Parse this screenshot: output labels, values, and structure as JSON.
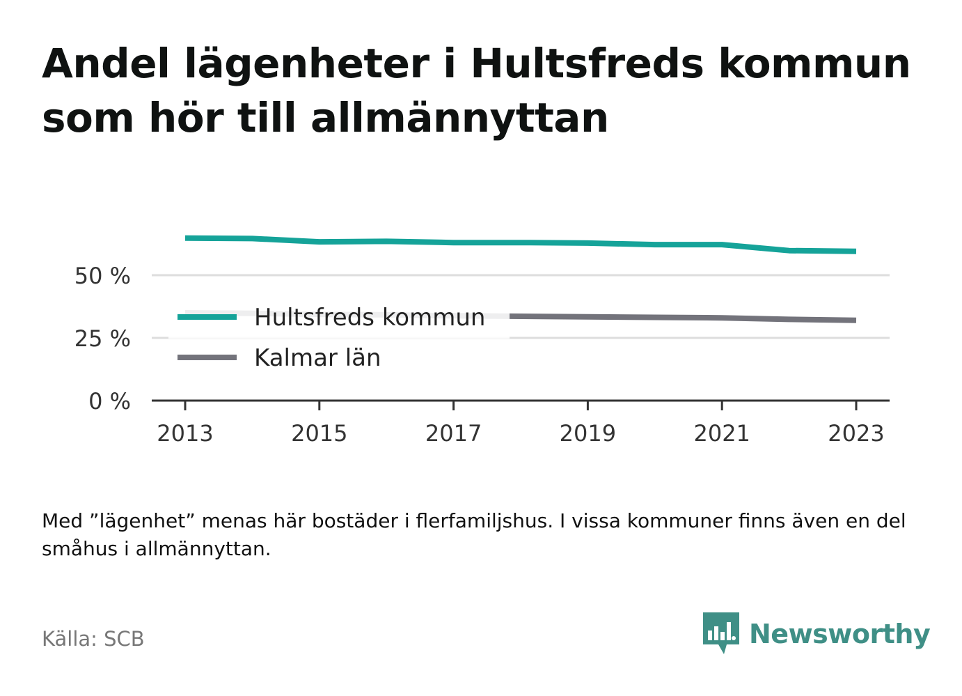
{
  "title": "Andel lägenheter i Hultsfreds kommun som hör till allmännyttan",
  "note": "Med ”lägenhet” menas här bostäder i flerfamiljshus. I vissa kommuner finns även en del småhus i allmännyttan.",
  "source": "Källa: SCB",
  "brand": {
    "name": "Newsworthy",
    "icon": "bar-chart-speech-bubble-icon",
    "color": "#3f8f86"
  },
  "colors": {
    "hultsfred": "#15a399",
    "kalmar": "#73737b",
    "grid": "#dddddd",
    "axis": "#333333"
  },
  "chart_data": {
    "type": "line",
    "title": "Andel lägenheter i Hultsfreds kommun som hör till allmännyttan",
    "xlabel": "",
    "ylabel": "",
    "x": [
      2013,
      2014,
      2015,
      2016,
      2017,
      2018,
      2019,
      2020,
      2021,
      2022,
      2023
    ],
    "series": [
      {
        "name": "Hultsfreds kommun",
        "color": "#15a399",
        "values": [
          64.8,
          64.6,
          63.3,
          63.5,
          63.0,
          63.0,
          62.8,
          62.2,
          62.2,
          59.8,
          59.5
        ]
      },
      {
        "name": "Kalmar län",
        "color": "#73737b",
        "values": [
          35.0,
          34.8,
          34.4,
          34.2,
          33.8,
          33.6,
          33.4,
          33.2,
          33.0,
          32.4,
          32.0
        ]
      }
    ],
    "xticks": [
      2013,
      2015,
      2017,
      2019,
      2021,
      2023
    ],
    "xtick_labels": [
      "2013",
      "2015",
      "2017",
      "2019",
      "2021",
      "2023"
    ],
    "yticks": [
      0,
      25,
      50
    ],
    "ytick_labels": [
      "0 %",
      "25 %",
      "50 %"
    ],
    "xlim": [
      2012.5,
      2023.5
    ],
    "ylim": [
      0,
      66
    ],
    "grid": true,
    "legend_placement": "left-center"
  }
}
